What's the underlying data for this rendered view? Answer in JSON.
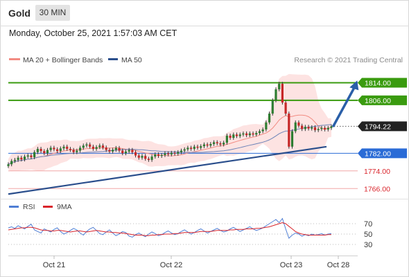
{
  "header": {
    "symbol": "Gold",
    "timeframe": "30 MIN",
    "datetime": "Monday, October 25, 2021 1:57:03 AM CET"
  },
  "chart_data": {
    "type": "candlestick",
    "legend": [
      {
        "name": "MA 20 + Bollinger Bands",
        "color": "#f28b82"
      },
      {
        "name": "MA 50",
        "color": "#2a4e8c"
      }
    ],
    "credit": "Research © 2021 Trading Central",
    "x_ticks": [
      "Oct 21",
      "Oct 22",
      "Oct 23",
      "Oct 28"
    ],
    "y_range": [
      1762,
      1822
    ],
    "price_levels": [
      {
        "value": 1814.0,
        "label": "1814.00",
        "kind": "resistance",
        "color": "#3a9b0f"
      },
      {
        "value": 1806.0,
        "label": "1806.00",
        "kind": "resistance",
        "color": "#3a9b0f"
      },
      {
        "value": 1794.22,
        "label": "1794.22",
        "kind": "last",
        "color": "#222222"
      },
      {
        "value": 1782.0,
        "label": "1782.00",
        "kind": "pivot",
        "color": "#2a6bd6"
      },
      {
        "value": 1774.0,
        "label": "1774.00",
        "kind": "support",
        "color": "#d9242b"
      },
      {
        "value": 1766.0,
        "label": "1766.00",
        "kind": "support",
        "color": "#d9242b"
      }
    ],
    "trendline": {
      "from": {
        "x": 0.0,
        "y": 1763.5
      },
      "to": {
        "x": 0.985,
        "y": 1785.0
      }
    },
    "projection": {
      "from": {
        "x": 1.005,
        "y": 1794.0
      },
      "to": {
        "x": 1.08,
        "y": 1815.0
      }
    },
    "candles": [
      1777.0,
      1778.5,
      1779.0,
      1780.0,
      1779.2,
      1780.5,
      1781.0,
      1780.2,
      1782.5,
      1784.0,
      1783.0,
      1782.0,
      1783.5,
      1784.5,
      1783.8,
      1783.0,
      1784.2,
      1785.0,
      1784.0,
      1783.5,
      1782.5,
      1783.2,
      1784.5,
      1785.5,
      1786.0,
      1785.0,
      1784.0,
      1784.8,
      1785.5,
      1784.6,
      1783.5,
      1782.8,
      1783.6,
      1784.4,
      1783.2,
      1782.0,
      1782.8,
      1783.5,
      1782.5,
      1781.0,
      1780.0,
      1780.8,
      1779.5,
      1779.0,
      1780.5,
      1781.5,
      1780.8,
      1781.2,
      1782.0,
      1781.5,
      1782.2,
      1781.8,
      1782.5,
      1783.2,
      1783.8,
      1784.5,
      1784.0,
      1785.0,
      1784.5,
      1785.2,
      1786.0,
      1785.5,
      1786.2,
      1787.0,
      1786.5,
      1786.0,
      1786.8,
      1790.0,
      1789.0,
      1790.5,
      1789.8,
      1790.5,
      1791.0,
      1790.2,
      1791.0,
      1790.5,
      1791.2,
      1792.0,
      1792.8,
      1796.0,
      1800.0,
      1806.0,
      1811.0,
      1813.5,
      1805.0,
      1800.0,
      1785.0,
      1792.0,
      1796.0,
      1794.5,
      1793.0,
      1794.0,
      1793.2,
      1793.8,
      1792.5,
      1793.0,
      1793.5,
      1792.8,
      1793.5,
      1794.2
    ],
    "indicator": {
      "name": "RSI",
      "signal": "9MA",
      "colors": {
        "rsi": "#4f7ed4",
        "signal": "#d9242b"
      },
      "y_ticks": [
        70,
        50,
        30
      ],
      "rsi_values": [
        62,
        64,
        61,
        66,
        63,
        60,
        65,
        69,
        58,
        55,
        52,
        60,
        57,
        54,
        59,
        62,
        55,
        50,
        53,
        57,
        61,
        58,
        52,
        48,
        55,
        60,
        63,
        57,
        51,
        49,
        54,
        58,
        52,
        47,
        50,
        55,
        53,
        46,
        44,
        49,
        52,
        48,
        45,
        50,
        54,
        51,
        47,
        49,
        53,
        56,
        52,
        49,
        51,
        55,
        58,
        54,
        50,
        53,
        57,
        60,
        56,
        52,
        55,
        58,
        61,
        57,
        54,
        56,
        60,
        63,
        59,
        55,
        58,
        61,
        64,
        60,
        57,
        59,
        62,
        66,
        70,
        74,
        78,
        72,
        80,
        60,
        42,
        48,
        52,
        50,
        46,
        49,
        47,
        50,
        48,
        49,
        51,
        48,
        50,
        51
      ],
      "signal_values": [
        58,
        59,
        60,
        61,
        62,
        62,
        63,
        63,
        62,
        60,
        58,
        57,
        57,
        56,
        56,
        57,
        57,
        56,
        55,
        54,
        55,
        56,
        56,
        55,
        54,
        55,
        56,
        57,
        56,
        55,
        54,
        54,
        53,
        53,
        52,
        52,
        51,
        50,
        49,
        48,
        48,
        48,
        47,
        47,
        48,
        48,
        49,
        49,
        50,
        50,
        50,
        51,
        51,
        52,
        53,
        53,
        53,
        53,
        54,
        55,
        55,
        55,
        55,
        56,
        57,
        57,
        57,
        57,
        58,
        58,
        59,
        59,
        59,
        60,
        60,
        60,
        61,
        61,
        62,
        63,
        64,
        66,
        68,
        70,
        72,
        70,
        65,
        60,
        55,
        52,
        50,
        49,
        48,
        48,
        48,
        48,
        48,
        48,
        49,
        49
      ]
    }
  }
}
